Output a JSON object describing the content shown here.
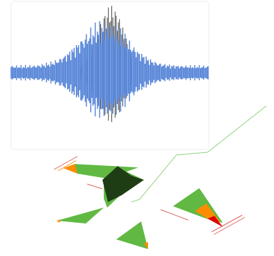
{
  "colors": {
    "background": "#ffffff",
    "panel": "#ffffff",
    "panel_border": "#eeeeee",
    "wave_blue": "#4f7fd6",
    "wave_dark": "#333333",
    "green": "#61b944",
    "dark_green": "#1f3d14",
    "orange": "#ff8c00",
    "red": "#e00000",
    "thin_green_line": "#8ed37d",
    "thin_red_line": "#e06060"
  },
  "icons": {
    "waveform": "audio-waveform-icon",
    "shapes": "triangle-shapes-icon"
  }
}
